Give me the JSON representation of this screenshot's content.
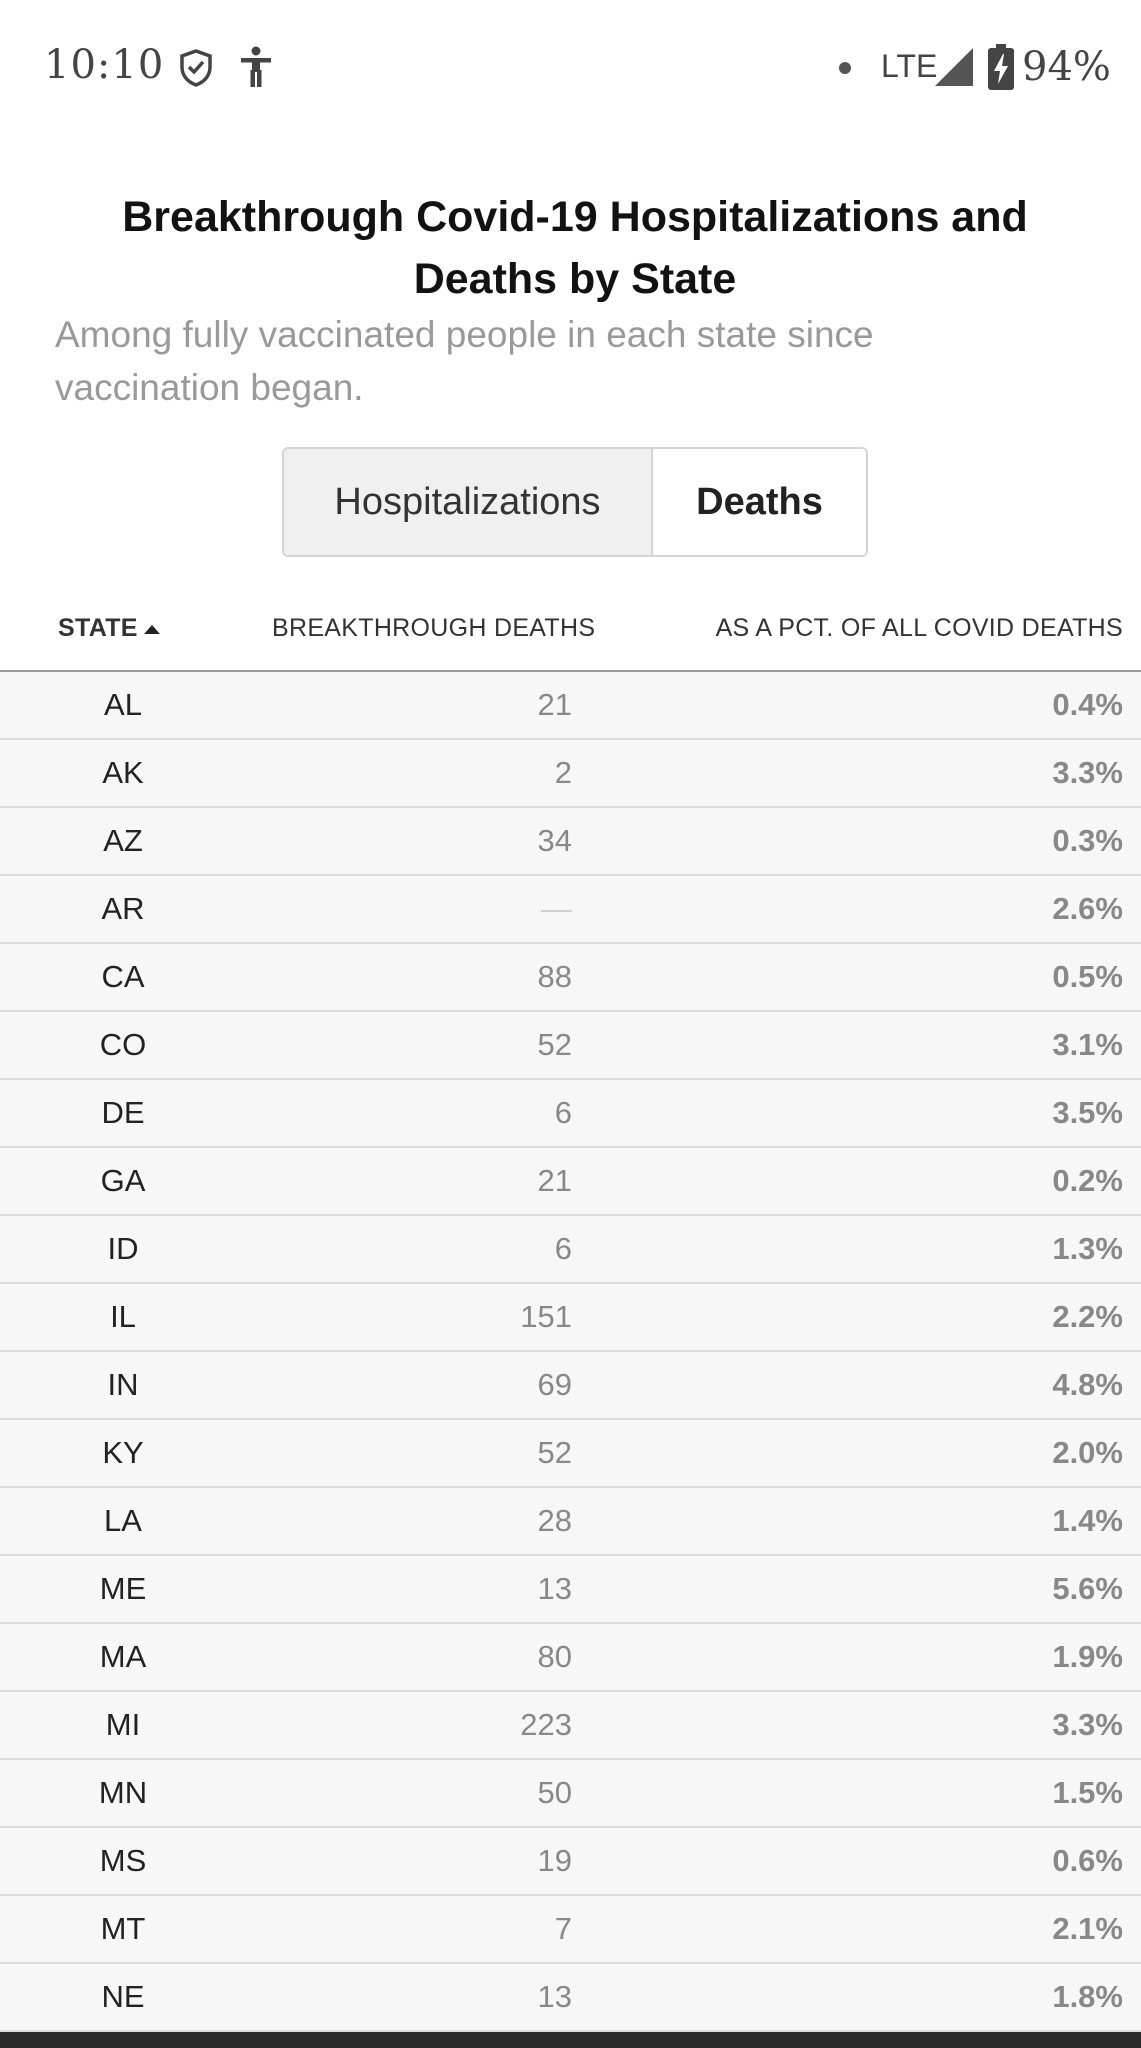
{
  "status_bar": {
    "time": "10:10",
    "network": "LTE",
    "battery": "94%",
    "icons": [
      "shield-check-icon",
      "accessibility-icon",
      "signal-icon",
      "battery-charging-icon"
    ]
  },
  "header": {
    "title": "Breakthrough Covid-19 Hospitalizations and Deaths by State",
    "subtitle": "Among fully vaccinated people in each state since vaccination began."
  },
  "toggle": {
    "options": [
      "Hospitalizations",
      "Deaths"
    ],
    "selected": "Deaths"
  },
  "table": {
    "columns": {
      "state": "STATE",
      "deaths": "BREAKTHROUGH DEATHS",
      "pct": "AS A PCT. OF ALL COVID DEATHS"
    },
    "sort": {
      "column": "state",
      "direction": "ascending"
    },
    "rows": [
      {
        "state": "AL",
        "deaths": "21",
        "pct": "0.4%"
      },
      {
        "state": "AK",
        "deaths": "2",
        "pct": "3.3%"
      },
      {
        "state": "AZ",
        "deaths": "34",
        "pct": "0.3%"
      },
      {
        "state": "AR",
        "deaths": "—",
        "pct": "2.6%"
      },
      {
        "state": "CA",
        "deaths": "88",
        "pct": "0.5%"
      },
      {
        "state": "CO",
        "deaths": "52",
        "pct": "3.1%"
      },
      {
        "state": "DE",
        "deaths": "6",
        "pct": "3.5%"
      },
      {
        "state": "GA",
        "deaths": "21",
        "pct": "0.2%"
      },
      {
        "state": "ID",
        "deaths": "6",
        "pct": "1.3%"
      },
      {
        "state": "IL",
        "deaths": "151",
        "pct": "2.2%"
      },
      {
        "state": "IN",
        "deaths": "69",
        "pct": "4.8%"
      },
      {
        "state": "KY",
        "deaths": "52",
        "pct": "2.0%"
      },
      {
        "state": "LA",
        "deaths": "28",
        "pct": "1.4%"
      },
      {
        "state": "ME",
        "deaths": "13",
        "pct": "5.6%"
      },
      {
        "state": "MA",
        "deaths": "80",
        "pct": "1.9%"
      },
      {
        "state": "MI",
        "deaths": "223",
        "pct": "3.3%"
      },
      {
        "state": "MN",
        "deaths": "50",
        "pct": "1.5%"
      },
      {
        "state": "MS",
        "deaths": "19",
        "pct": "0.6%"
      },
      {
        "state": "MT",
        "deaths": "7",
        "pct": "2.1%"
      },
      {
        "state": "NE",
        "deaths": "13",
        "pct": "1.8%"
      }
    ]
  }
}
